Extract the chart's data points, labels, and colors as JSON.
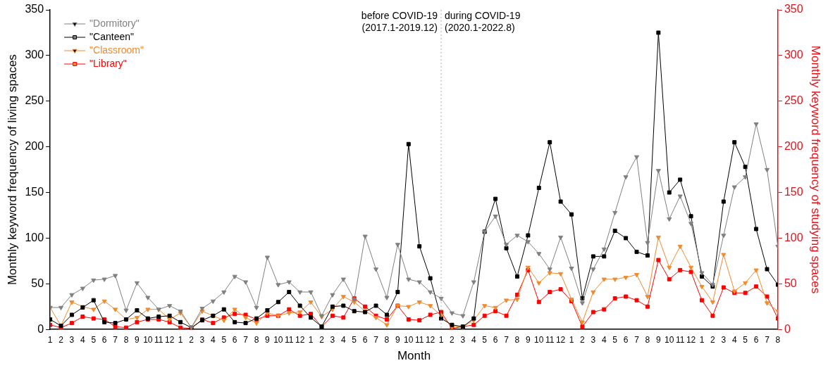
{
  "chart_data": {
    "type": "line",
    "xlabel": "Month",
    "ylabel": "Monthly keyword frequency of living spaces",
    "y2label": "Monthly keyword frequency of studying spaces",
    "x": [
      "2017-01",
      "2017-02",
      "2017-03",
      "2017-04",
      "2017-05",
      "2017-06",
      "2017-07",
      "2017-08",
      "2017-09",
      "2017-10",
      "2017-11",
      "2017-12",
      "2018-01",
      "2018-02",
      "2018-03",
      "2018-04",
      "2018-05",
      "2018-06",
      "2018-07",
      "2018-08",
      "2018-09",
      "2018-10",
      "2018-11",
      "2018-12",
      "2019-01",
      "2019-02",
      "2019-03",
      "2019-04",
      "2019-05",
      "2019-06",
      "2019-07",
      "2019-08",
      "2019-09",
      "2019-10",
      "2019-11",
      "2019-12",
      "2020-01",
      "2020-02",
      "2020-03",
      "2020-04",
      "2020-05",
      "2020-06",
      "2020-07",
      "2020-08",
      "2020-09",
      "2020-10",
      "2020-11",
      "2020-12",
      "2021-01",
      "2021-02",
      "2021-03",
      "2021-04",
      "2021-05",
      "2021-06",
      "2021-07",
      "2021-08",
      "2021-09",
      "2021-10",
      "2021-11",
      "2021-12",
      "2022-01",
      "2022-02",
      "2022-03",
      "2022-04",
      "2022-05",
      "2022-06",
      "2022-07",
      "2022-08"
    ],
    "xlim": [
      "2017-01",
      "2022-08"
    ],
    "xticks": [
      {
        "value": "2017-01",
        "label": "1"
      },
      {
        "value": "2017-02",
        "label": "2"
      },
      {
        "value": "2017-03",
        "label": "3"
      },
      {
        "value": "2017-04",
        "label": "4"
      },
      {
        "value": "2017-05",
        "label": "5"
      },
      {
        "value": "2017-06",
        "label": "6"
      },
      {
        "value": "2017-07",
        "label": "7"
      },
      {
        "value": "2017-08",
        "label": "8"
      },
      {
        "value": "2017-09",
        "label": "9"
      },
      {
        "value": "2017-10",
        "label": "10"
      },
      {
        "value": "2017-11",
        "label": "11"
      },
      {
        "value": "2017-12",
        "label": "12"
      },
      {
        "value": "2018-01",
        "label": "1"
      },
      {
        "value": "2018-02",
        "label": "2"
      },
      {
        "value": "2018-03",
        "label": "3"
      },
      {
        "value": "2018-04",
        "label": "4"
      },
      {
        "value": "2018-05",
        "label": "5"
      },
      {
        "value": "2018-06",
        "label": "6"
      },
      {
        "value": "2018-07",
        "label": "7"
      },
      {
        "value": "2018-08",
        "label": "8"
      },
      {
        "value": "2018-09",
        "label": "9"
      },
      {
        "value": "2018-10",
        "label": "10"
      },
      {
        "value": "2018-11",
        "label": "11"
      },
      {
        "value": "2018-12",
        "label": "12"
      },
      {
        "value": "2019-01",
        "label": "1"
      },
      {
        "value": "2019-02",
        "label": "2"
      },
      {
        "value": "2019-03",
        "label": "3"
      },
      {
        "value": "2019-04",
        "label": "4"
      },
      {
        "value": "2019-05",
        "label": "5"
      },
      {
        "value": "2019-06",
        "label": "6"
      },
      {
        "value": "2019-07",
        "label": "7"
      },
      {
        "value": "2019-08",
        "label": "8"
      },
      {
        "value": "2019-09",
        "label": "9"
      },
      {
        "value": "2019-10",
        "label": "10"
      },
      {
        "value": "2019-11",
        "label": "11"
      },
      {
        "value": "2019-12",
        "label": "12"
      },
      {
        "value": "2020-01",
        "label": "1"
      },
      {
        "value": "2020-02",
        "label": "2"
      },
      {
        "value": "2020-03",
        "label": "3"
      },
      {
        "value": "2020-04",
        "label": "4"
      },
      {
        "value": "2020-05",
        "label": "5"
      },
      {
        "value": "2020-06",
        "label": "6"
      },
      {
        "value": "2020-07",
        "label": "7"
      },
      {
        "value": "2020-08",
        "label": "8"
      },
      {
        "value": "2020-09",
        "label": "9"
      },
      {
        "value": "2020-10",
        "label": "10"
      },
      {
        "value": "2020-11",
        "label": "11"
      },
      {
        "value": "2020-12",
        "label": "12"
      },
      {
        "value": "2021-01",
        "label": "1"
      },
      {
        "value": "2021-02",
        "label": "2"
      },
      {
        "value": "2021-03",
        "label": "3"
      },
      {
        "value": "2021-04",
        "label": "4"
      },
      {
        "value": "2021-05",
        "label": "5"
      },
      {
        "value": "2021-06",
        "label": "6"
      },
      {
        "value": "2021-07",
        "label": "7"
      },
      {
        "value": "2021-08",
        "label": "8"
      },
      {
        "value": "2021-09",
        "label": "9"
      },
      {
        "value": "2021-10",
        "label": "10"
      },
      {
        "value": "2021-11",
        "label": "11"
      },
      {
        "value": "2021-12",
        "label": "12"
      },
      {
        "value": "2022-01",
        "label": "1"
      },
      {
        "value": "2022-02",
        "label": "2"
      },
      {
        "value": "2022-03",
        "label": "3"
      },
      {
        "value": "2022-04",
        "label": "4"
      },
      {
        "value": "2022-05",
        "label": "5"
      },
      {
        "value": "2022-06",
        "label": "6"
      },
      {
        "value": "2022-07",
        "label": "7"
      },
      {
        "value": "2022-08",
        "label": "8"
      }
    ],
    "ylim": [
      0,
      350
    ],
    "yticks": [
      0,
      50,
      100,
      150,
      200,
      250,
      300,
      350
    ],
    "y2lim": [
      0,
      350
    ],
    "y2ticks": [
      0,
      50,
      100,
      150,
      200,
      250,
      300,
      350
    ],
    "series": [
      {
        "name": "\"Dormitory\"",
        "color": "#808080",
        "marker": "triangle",
        "values": [
          24,
          24,
          38,
          45,
          54,
          55,
          59,
          21,
          51,
          35,
          22,
          26,
          20,
          2,
          23,
          31,
          41,
          58,
          52,
          24,
          79,
          49,
          52,
          41,
          41,
          15,
          38,
          55,
          33,
          102,
          66,
          35,
          93,
          55,
          52,
          41,
          34,
          18,
          15,
          52,
          107,
          124,
          93,
          103,
          96,
          83,
          66,
          101,
          67,
          29,
          66,
          88,
          128,
          167,
          189,
          95,
          174,
          121,
          146,
          116,
          62,
          49,
          103,
          156,
          167,
          225,
          175,
          91
        ]
      },
      {
        "name": "\"Canteen\"",
        "color": "#000000",
        "marker": "square",
        "values": [
          11,
          4,
          16,
          24,
          32,
          8,
          7,
          11,
          21,
          12,
          14,
          15,
          8,
          2,
          10,
          15,
          22,
          8,
          7,
          12,
          21,
          30,
          41,
          26,
          13,
          3,
          25,
          26,
          20,
          19,
          26,
          16,
          41,
          203,
          91,
          56,
          12,
          5,
          3,
          12,
          107,
          143,
          89,
          58,
          103,
          155,
          205,
          140,
          126,
          34,
          80,
          80,
          108,
          100,
          85,
          81,
          325,
          150,
          164,
          124,
          58,
          47,
          140,
          205,
          178,
          110,
          66,
          49
        ]
      },
      {
        "name": "\"Classroom\"",
        "color": "#f28a2e",
        "marker": "triangle",
        "axis": "y2",
        "values": [
          24,
          4,
          30,
          25,
          22,
          31,
          22,
          11,
          13,
          22,
          22,
          11,
          18,
          2,
          20,
          15,
          10,
          22,
          13,
          7,
          18,
          15,
          18,
          19,
          30,
          14,
          22,
          36,
          30,
          20,
          13,
          5,
          26,
          25,
          30,
          26,
          15,
          3,
          3,
          10,
          26,
          24,
          32,
          33,
          68,
          51,
          62,
          61,
          33,
          8,
          41,
          55,
          55,
          57,
          60,
          36,
          101,
          68,
          91,
          68,
          47,
          30,
          82,
          42,
          51,
          65,
          29,
          20
        ]
      },
      {
        "name": "\"Library\"",
        "color": "#ff0000",
        "marker": "square",
        "axis": "y2",
        "values": [
          5,
          2,
          7,
          14,
          12,
          11,
          3,
          2,
          8,
          11,
          11,
          8,
          2,
          1,
          11,
          7,
          13,
          17,
          16,
          11,
          15,
          15,
          22,
          15,
          17,
          3,
          15,
          13,
          34,
          25,
          15,
          11,
          26,
          11,
          10,
          16,
          19,
          1,
          3,
          5,
          15,
          20,
          15,
          38,
          65,
          30,
          41,
          44,
          31,
          3,
          19,
          22,
          34,
          36,
          32,
          25,
          76,
          55,
          65,
          63,
          32,
          15,
          46,
          40,
          40,
          47,
          36,
          12
        ]
      }
    ],
    "ref_lines": [
      {
        "axis": "x",
        "value": "2020-01",
        "color": "#b0b0b0",
        "line_style": "dotted"
      }
    ],
    "annotations": [
      "before COVID-19\n(2017.1-2019.12)",
      "during COVID-19\n(2020.1-2022.8)"
    ],
    "legend": "top left",
    "grid": false
  }
}
